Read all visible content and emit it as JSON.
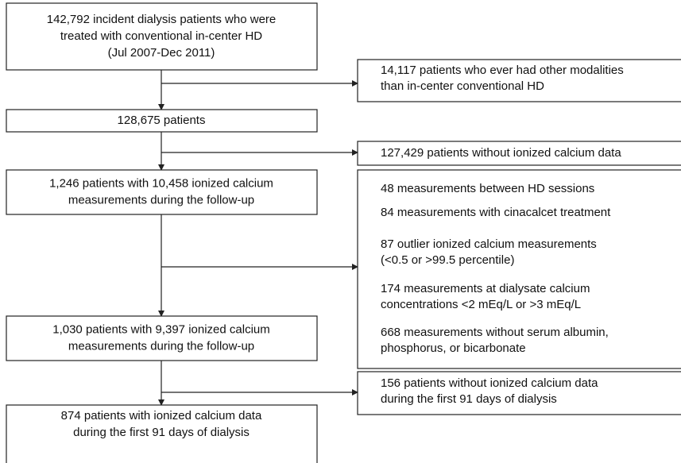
{
  "steps": [
    {
      "lines": [
        "142,792 incident dialysis patients who were",
        "treated with conventional in-center HD",
        "(Jul 2007-Dec 2011)"
      ]
    },
    {
      "lines": [
        "128,675 patients"
      ]
    },
    {
      "lines": [
        "1,246 patients with 10,458 ionized calcium",
        "measurements during the follow-up"
      ]
    },
    {
      "lines": [
        "1,030 patients with 9,397 ionized calcium",
        "measurements during the follow-up"
      ]
    },
    {
      "lines": [
        "874 patients with ionized calcium data",
        "during the first 91 days of dialysis"
      ]
    }
  ],
  "exclusions": [
    {
      "items": [
        {
          "lines": [
            "14,117 patients who ever had other modalities",
            "than in-center conventional HD"
          ]
        }
      ]
    },
    {
      "items": [
        {
          "lines": [
            "127,429 patients without ionized calcium data"
          ]
        }
      ]
    },
    {
      "items": [
        {
          "lines": [
            "48 measurements between HD sessions"
          ]
        },
        {
          "lines": [
            "84 measurements with cinacalcet treatment"
          ]
        },
        {
          "lines": [
            "87 outlier ionized calcium measurements",
            "(<0.5 or >99.5 percentile)"
          ]
        },
        {
          "lines": [
            "174 measurements at dialysate calcium",
            "concentrations <2 mEq/L or >3 mEq/L"
          ]
        },
        {
          "lines": [
            "668 measurements without serum albumin,",
            "phosphorus, or bicarbonate"
          ]
        }
      ]
    },
    {
      "items": [
        {
          "lines": [
            "156 patients without ionized calcium data",
            "during the first 91 days of dialysis"
          ]
        }
      ]
    }
  ]
}
